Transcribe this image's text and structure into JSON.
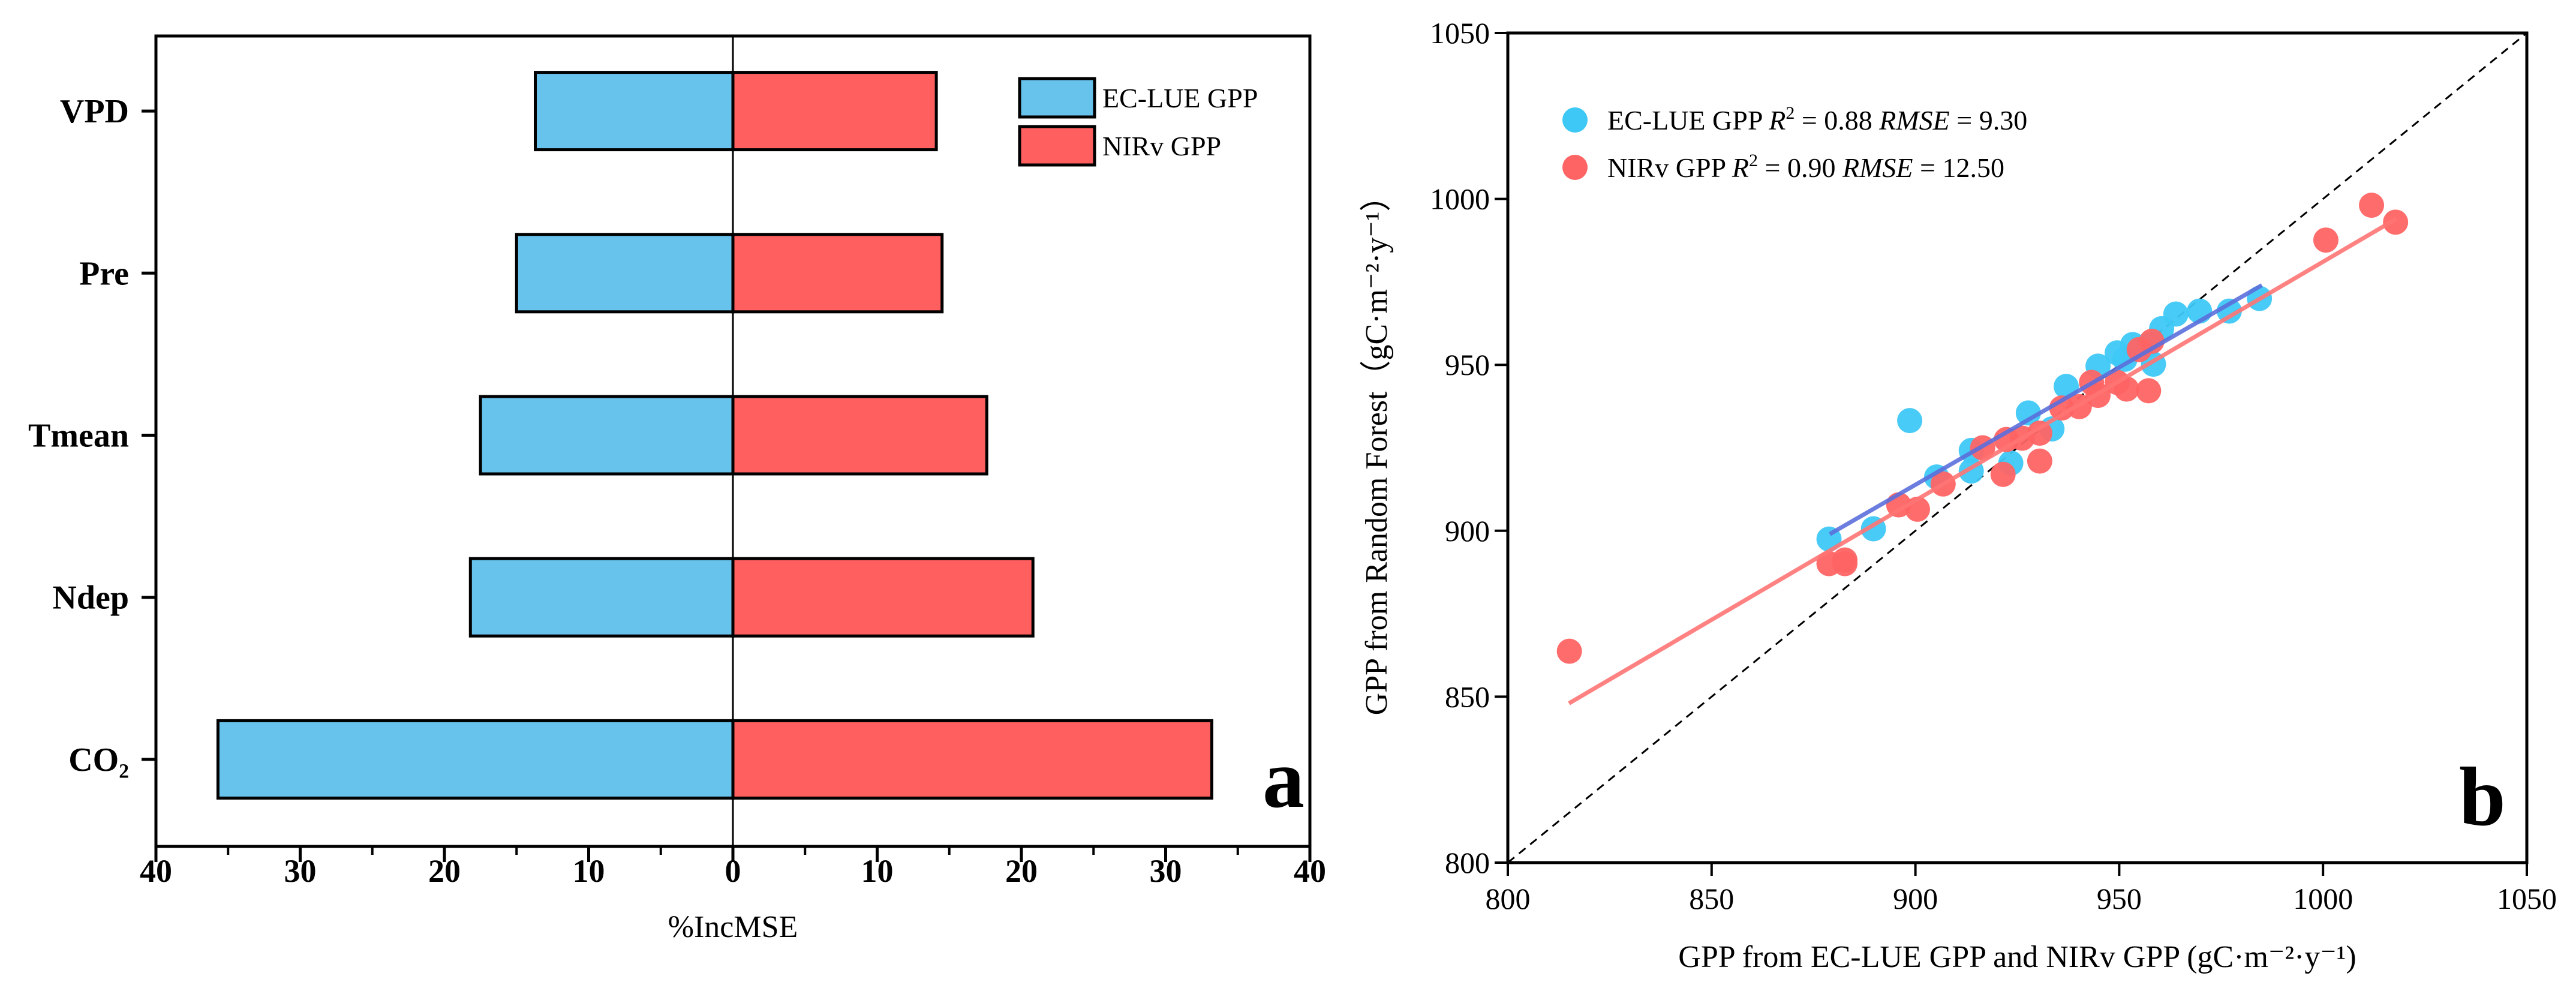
{
  "chart_data": [
    {
      "type": "bar",
      "orientation": "horizontal-diverging",
      "panel_label": "a",
      "categories": [
        "VPD",
        "Pre",
        "Tmean",
        "Ndep",
        "CO₂"
      ],
      "series": [
        {
          "name": "EC-LUE GPP",
          "color": "#67c2ec",
          "direction": "left",
          "values": [
            13.7,
            15.0,
            17.5,
            18.2,
            35.7
          ]
        },
        {
          "name": "NIRv GPP",
          "color": "#ff5f5f",
          "direction": "right",
          "values": [
            14.1,
            14.5,
            17.6,
            20.8,
            33.2
          ]
        }
      ],
      "xlabel": "%IncMSE",
      "xlim": [
        -40,
        40
      ],
      "xticks": [
        -40,
        -30,
        -20,
        -10,
        0,
        10,
        20,
        30,
        40
      ],
      "xtick_labels": [
        "40",
        "30",
        "20",
        "10",
        "0",
        "10",
        "20",
        "30",
        "40"
      ],
      "legend_position": "top-right"
    },
    {
      "type": "scatter",
      "panel_label": "b",
      "xlabel": "GPP from EC-LUE GPP and NIRv GPP (gC·m⁻²·y⁻¹)",
      "ylabel": "GPP from Random Forest（gC·m⁻²·y⁻¹）",
      "xlim": [
        800,
        1050
      ],
      "ylim": [
        800,
        1050
      ],
      "xticks": [
        800,
        850,
        900,
        950,
        1000,
        1050
      ],
      "yticks": [
        800,
        850,
        900,
        950,
        1000,
        1050
      ],
      "reference_line": "1:1 dashed",
      "legend_position": "top-left",
      "series": [
        {
          "name": "EC-LUE GPP",
          "r2": "0.88",
          "rmse": "9.30",
          "color": "#3ec8f5",
          "line_color": "#5b6fdb",
          "fit": [
            [
              879,
              899
            ],
            [
              985,
              974
            ]
          ],
          "points": [
            [
              878.8,
              897.5
            ],
            [
              889.7,
              900.6
            ],
            [
              898.6,
              933.2
            ],
            [
              905.2,
              916.2
            ],
            [
              913.7,
              924.2
            ],
            [
              913.7,
              918
            ],
            [
              923.4,
              920.4
            ],
            [
              927.7,
              935.5
            ],
            [
              933.5,
              930.7
            ],
            [
              937,
              943.5
            ],
            [
              944.8,
              949.6
            ],
            [
              949.5,
              953.6
            ],
            [
              953.3,
              956.1
            ],
            [
              951.4,
              951.7
            ],
            [
              958.4,
              950.2
            ],
            [
              960.4,
              960.9
            ],
            [
              963.9,
              965.3
            ],
            [
              969.7,
              966.2
            ],
            [
              977,
              966.2
            ],
            [
              984.4,
              970
            ],
            [
              957.2,
              956.1
            ]
          ]
        },
        {
          "name": "NIRv GPP",
          "r2": "0.90",
          "rmse": "12.50",
          "color": "#ff6464",
          "line_color": "#ff7474",
          "fit": [
            [
              815,
              848
            ],
            [
              1018,
              994
            ]
          ],
          "points": [
            [
              815.1,
              863.7
            ],
            [
              878.8,
              890.1
            ],
            [
              882.7,
              891.2
            ],
            [
              882.7,
              890.1
            ],
            [
              895.9,
              907.8
            ],
            [
              900.5,
              906.5
            ],
            [
              906.8,
              914.1
            ],
            [
              916.5,
              925
            ],
            [
              921.5,
              917
            ],
            [
              922.3,
              927.5
            ],
            [
              926.2,
              927.9
            ],
            [
              930.5,
              929.4
            ],
            [
              930.5,
              921
            ],
            [
              935.9,
              937
            ],
            [
              940.2,
              937.4
            ],
            [
              943.2,
              944.7
            ],
            [
              944.8,
              940.8
            ],
            [
              949.5,
              944.7
            ],
            [
              951.8,
              942.7
            ],
            [
              957.2,
              942.2
            ],
            [
              954.9,
              954.6
            ],
            [
              958,
              957.1
            ],
            [
              1000.7,
              987.6
            ],
            [
              1011.9,
              998.1
            ],
            [
              1017.8,
              993
            ]
          ]
        }
      ],
      "legend_text": {
        "r_symbol": "R",
        "r_sup": "2",
        "rmse_symbol": "RMSE",
        "equals": " = "
      }
    }
  ]
}
